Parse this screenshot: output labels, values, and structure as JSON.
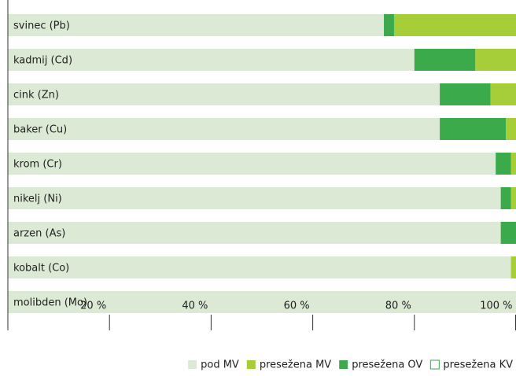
{
  "chart_data": {
    "type": "stacked_barh",
    "categories": [
      "svinec (Pb)",
      "kadmij (Cd)",
      "cink (Zn)",
      "baker (Cu)",
      "krom (Cr)",
      "nikelj (Ni)",
      "arzen (As)",
      "kobalt (Co)",
      "molibden (Mo)"
    ],
    "series": [
      {
        "name": "pod MV",
        "color": "#dbe9d5",
        "values": [
          74,
          80,
          85,
          85,
          96,
          97,
          97,
          99,
          100
        ]
      },
      {
        "name": "presežena MV",
        "color": "#a6ce39",
        "values": [
          24,
          8,
          5,
          2,
          1,
          1,
          0,
          1,
          0
        ]
      },
      {
        "name": "presežena OV",
        "color": "#3aaa4a",
        "values": [
          2,
          12,
          10,
          13,
          3,
          2,
          3,
          0,
          0
        ]
      },
      {
        "name": "presežena KV",
        "color": "#ffffff",
        "values": [
          0,
          0,
          0,
          0,
          0,
          0,
          0,
          0,
          0
        ]
      }
    ],
    "xlim": [
      0,
      100
    ],
    "xticks": [
      {
        "value": 20,
        "label": "20 %"
      },
      {
        "value": 40,
        "label": "40 %"
      },
      {
        "value": 60,
        "label": "60 %"
      },
      {
        "value": 80,
        "label": "80 %"
      },
      {
        "value": 100,
        "label": "100 %"
      }
    ],
    "legend": "bottom-right"
  }
}
